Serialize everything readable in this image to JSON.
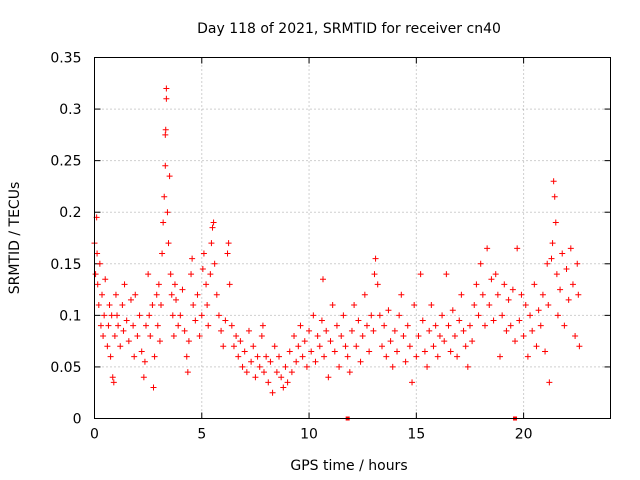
{
  "chart_data": {
    "type": "scatter",
    "title": "Day 118 of 2021, SRMTID for receiver cn40",
    "xlabel": "GPS time / hours",
    "ylabel": "SRMTID / TECUs",
    "xlim": [
      0,
      24.05
    ],
    "ylim": [
      0,
      0.35
    ],
    "xticks": [
      0,
      5,
      10,
      15,
      20
    ],
    "xtick_labels": [
      "0",
      "5",
      "10",
      "15",
      "20"
    ],
    "yticks": [
      0,
      0.05,
      0.1,
      0.15,
      0.2,
      0.25,
      0.3,
      0.35
    ],
    "ytick_labels": [
      "0",
      "0.05",
      "0.1",
      "0.15",
      "0.2",
      "0.25",
      "0.3",
      "0.35"
    ],
    "grid": true,
    "marker": "plus",
    "color": "#ff0000",
    "series": [
      {
        "name": "cn40",
        "points": [
          [
            0.0,
            0.17
          ],
          [
            0.05,
            0.14
          ],
          [
            0.1,
            0.195
          ],
          [
            0.12,
            0.16
          ],
          [
            0.15,
            0.13
          ],
          [
            0.2,
            0.11
          ],
          [
            0.25,
            0.15
          ],
          [
            0.3,
            0.09
          ],
          [
            0.35,
            0.12
          ],
          [
            0.4,
            0.08
          ],
          [
            0.45,
            0.1
          ],
          [
            0.5,
            0.135
          ],
          [
            0.6,
            0.07
          ],
          [
            0.65,
            0.09
          ],
          [
            0.7,
            0.11
          ],
          [
            0.75,
            0.06
          ],
          [
            0.8,
            0.1
          ],
          [
            0.85,
            0.04
          ],
          [
            0.9,
            0.035
          ],
          [
            0.95,
            0.08
          ],
          [
            1.0,
            0.12
          ],
          [
            1.05,
            0.1
          ],
          [
            1.1,
            0.09
          ],
          [
            1.2,
            0.07
          ],
          [
            1.3,
            0.11
          ],
          [
            1.35,
            0.085
          ],
          [
            1.4,
            0.13
          ],
          [
            1.5,
            0.095
          ],
          [
            1.6,
            0.075
          ],
          [
            1.7,
            0.115
          ],
          [
            1.8,
            0.09
          ],
          [
            1.85,
            0.06
          ],
          [
            1.9,
            0.12
          ],
          [
            2.0,
            0.08
          ],
          [
            2.1,
            0.1
          ],
          [
            2.2,
            0.065
          ],
          [
            2.3,
            0.04
          ],
          [
            2.35,
            0.055
          ],
          [
            2.4,
            0.09
          ],
          [
            2.5,
            0.14
          ],
          [
            2.55,
            0.1
          ],
          [
            2.6,
            0.08
          ],
          [
            2.7,
            0.11
          ],
          [
            2.75,
            0.03
          ],
          [
            2.8,
            0.06
          ],
          [
            2.9,
            0.12
          ],
          [
            2.95,
            0.09
          ],
          [
            3.0,
            0.13
          ],
          [
            3.05,
            0.075
          ],
          [
            3.1,
            0.11
          ],
          [
            3.15,
            0.16
          ],
          [
            3.2,
            0.19
          ],
          [
            3.25,
            0.215
          ],
          [
            3.3,
            0.245
          ],
          [
            3.3,
            0.275
          ],
          [
            3.32,
            0.28
          ],
          [
            3.35,
            0.31
          ],
          [
            3.35,
            0.32
          ],
          [
            3.4,
            0.2
          ],
          [
            3.45,
            0.17
          ],
          [
            3.5,
            0.235
          ],
          [
            3.55,
            0.14
          ],
          [
            3.6,
            0.12
          ],
          [
            3.65,
            0.1
          ],
          [
            3.7,
            0.08
          ],
          [
            3.75,
            0.13
          ],
          [
            3.8,
            0.115
          ],
          [
            3.9,
            0.09
          ],
          [
            4.0,
            0.1
          ],
          [
            4.1,
            0.125
          ],
          [
            4.2,
            0.085
          ],
          [
            4.3,
            0.06
          ],
          [
            4.35,
            0.045
          ],
          [
            4.4,
            0.075
          ],
          [
            4.5,
            0.14
          ],
          [
            4.55,
            0.155
          ],
          [
            4.6,
            0.11
          ],
          [
            4.7,
            0.095
          ],
          [
            4.8,
            0.12
          ],
          [
            4.9,
            0.08
          ],
          [
            5.0,
            0.1
          ],
          [
            5.05,
            0.145
          ],
          [
            5.1,
            0.16
          ],
          [
            5.2,
            0.13
          ],
          [
            5.25,
            0.11
          ],
          [
            5.3,
            0.09
          ],
          [
            5.4,
            0.14
          ],
          [
            5.45,
            0.17
          ],
          [
            5.5,
            0.185
          ],
          [
            5.55,
            0.19
          ],
          [
            5.6,
            0.15
          ],
          [
            5.7,
            0.12
          ],
          [
            5.8,
            0.1
          ],
          [
            5.9,
            0.085
          ],
          [
            6.0,
            0.07
          ],
          [
            6.1,
            0.095
          ],
          [
            6.2,
            0.16
          ],
          [
            6.25,
            0.17
          ],
          [
            6.3,
            0.13
          ],
          [
            6.4,
            0.09
          ],
          [
            6.5,
            0.07
          ],
          [
            6.6,
            0.08
          ],
          [
            6.7,
            0.06
          ],
          [
            6.8,
            0.075
          ],
          [
            6.9,
            0.05
          ],
          [
            7.0,
            0.065
          ],
          [
            7.1,
            0.045
          ],
          [
            7.2,
            0.085
          ],
          [
            7.3,
            0.055
          ],
          [
            7.4,
            0.07
          ],
          [
            7.5,
            0.04
          ],
          [
            7.6,
            0.06
          ],
          [
            7.7,
            0.05
          ],
          [
            7.8,
            0.08
          ],
          [
            7.85,
            0.09
          ],
          [
            7.9,
            0.045
          ],
          [
            8.0,
            0.06
          ],
          [
            8.1,
            0.035
          ],
          [
            8.2,
            0.055
          ],
          [
            8.3,
            0.025
          ],
          [
            8.4,
            0.07
          ],
          [
            8.5,
            0.045
          ],
          [
            8.6,
            0.06
          ],
          [
            8.7,
            0.04
          ],
          [
            8.8,
            0.03
          ],
          [
            8.9,
            0.05
          ],
          [
            9.0,
            0.035
          ],
          [
            9.1,
            0.065
          ],
          [
            9.2,
            0.045
          ],
          [
            9.3,
            0.08
          ],
          [
            9.4,
            0.055
          ],
          [
            9.5,
            0.07
          ],
          [
            9.6,
            0.09
          ],
          [
            9.7,
            0.06
          ],
          [
            9.8,
            0.075
          ],
          [
            9.9,
            0.05
          ],
          [
            10.0,
            0.085
          ],
          [
            10.1,
            0.065
          ],
          [
            10.2,
            0.1
          ],
          [
            10.3,
            0.055
          ],
          [
            10.4,
            0.08
          ],
          [
            10.5,
            0.07
          ],
          [
            10.6,
            0.095
          ],
          [
            10.65,
            0.135
          ],
          [
            10.7,
            0.06
          ],
          [
            10.8,
            0.085
          ],
          [
            10.9,
            0.04
          ],
          [
            11.0,
            0.075
          ],
          [
            11.1,
            0.11
          ],
          [
            11.2,
            0.065
          ],
          [
            11.3,
            0.09
          ],
          [
            11.4,
            0.05
          ],
          [
            11.5,
            0.08
          ],
          [
            11.6,
            0.1
          ],
          [
            11.7,
            0.07
          ],
          [
            11.8,
            0.06
          ],
          [
            11.8,
            0.0
          ],
          [
            11.9,
            0.045
          ],
          [
            12.0,
            0.085
          ],
          [
            12.1,
            0.11
          ],
          [
            12.2,
            0.07
          ],
          [
            12.3,
            0.095
          ],
          [
            12.4,
            0.055
          ],
          [
            12.5,
            0.08
          ],
          [
            12.6,
            0.12
          ],
          [
            12.7,
            0.09
          ],
          [
            12.8,
            0.065
          ],
          [
            12.9,
            0.1
          ],
          [
            13.0,
            0.085
          ],
          [
            13.05,
            0.14
          ],
          [
            13.1,
            0.155
          ],
          [
            13.2,
            0.13
          ],
          [
            13.3,
            0.1
          ],
          [
            13.4,
            0.07
          ],
          [
            13.5,
            0.09
          ],
          [
            13.6,
            0.06
          ],
          [
            13.7,
            0.105
          ],
          [
            13.8,
            0.075
          ],
          [
            13.9,
            0.05
          ],
          [
            14.0,
            0.085
          ],
          [
            14.1,
            0.065
          ],
          [
            14.2,
            0.1
          ],
          [
            14.3,
            0.12
          ],
          [
            14.4,
            0.08
          ],
          [
            14.5,
            0.055
          ],
          [
            14.6,
            0.09
          ],
          [
            14.7,
            0.07
          ],
          [
            14.8,
            0.035
          ],
          [
            14.9,
            0.11
          ],
          [
            15.0,
            0.06
          ],
          [
            15.1,
            0.08
          ],
          [
            15.2,
            0.14
          ],
          [
            15.3,
            0.095
          ],
          [
            15.4,
            0.065
          ],
          [
            15.5,
            0.05
          ],
          [
            15.6,
            0.085
          ],
          [
            15.7,
            0.11
          ],
          [
            15.8,
            0.07
          ],
          [
            15.9,
            0.09
          ],
          [
            16.0,
            0.06
          ],
          [
            16.1,
            0.08
          ],
          [
            16.2,
            0.1
          ],
          [
            16.3,
            0.075
          ],
          [
            16.4,
            0.14
          ],
          [
            16.5,
            0.09
          ],
          [
            16.6,
            0.065
          ],
          [
            16.7,
            0.105
          ],
          [
            16.8,
            0.08
          ],
          [
            16.9,
            0.06
          ],
          [
            17.0,
            0.095
          ],
          [
            17.1,
            0.12
          ],
          [
            17.2,
            0.085
          ],
          [
            17.3,
            0.07
          ],
          [
            17.4,
            0.05
          ],
          [
            17.5,
            0.09
          ],
          [
            17.6,
            0.075
          ],
          [
            17.7,
            0.11
          ],
          [
            17.8,
            0.13
          ],
          [
            17.9,
            0.1
          ],
          [
            18.0,
            0.15
          ],
          [
            18.1,
            0.12
          ],
          [
            18.2,
            0.09
          ],
          [
            18.3,
            0.165
          ],
          [
            18.4,
            0.11
          ],
          [
            18.5,
            0.135
          ],
          [
            18.6,
            0.095
          ],
          [
            18.7,
            0.14
          ],
          [
            18.8,
            0.12
          ],
          [
            18.9,
            0.06
          ],
          [
            19.0,
            0.1
          ],
          [
            19.1,
            0.13
          ],
          [
            19.2,
            0.085
          ],
          [
            19.3,
            0.115
          ],
          [
            19.4,
            0.09
          ],
          [
            19.5,
            0.125
          ],
          [
            19.6,
            0.075
          ],
          [
            19.6,
            0.0
          ],
          [
            19.7,
            0.165
          ],
          [
            19.8,
            0.095
          ],
          [
            19.9,
            0.12
          ],
          [
            20.0,
            0.08
          ],
          [
            20.1,
            0.11
          ],
          [
            20.2,
            0.06
          ],
          [
            20.3,
            0.1
          ],
          [
            20.4,
            0.085
          ],
          [
            20.5,
            0.13
          ],
          [
            20.6,
            0.07
          ],
          [
            20.7,
            0.105
          ],
          [
            20.8,
            0.09
          ],
          [
            20.9,
            0.12
          ],
          [
            21.0,
            0.065
          ],
          [
            21.1,
            0.15
          ],
          [
            21.15,
            0.11
          ],
          [
            21.2,
            0.035
          ],
          [
            21.3,
            0.155
          ],
          [
            21.35,
            0.17
          ],
          [
            21.4,
            0.23
          ],
          [
            21.45,
            0.215
          ],
          [
            21.5,
            0.19
          ],
          [
            21.55,
            0.14
          ],
          [
            21.6,
            0.1
          ],
          [
            21.7,
            0.125
          ],
          [
            21.8,
            0.16
          ],
          [
            21.9,
            0.09
          ],
          [
            22.0,
            0.145
          ],
          [
            22.1,
            0.115
          ],
          [
            22.2,
            0.165
          ],
          [
            22.3,
            0.13
          ],
          [
            22.4,
            0.08
          ],
          [
            22.5,
            0.15
          ],
          [
            22.55,
            0.12
          ],
          [
            22.6,
            0.07
          ]
        ]
      }
    ]
  }
}
